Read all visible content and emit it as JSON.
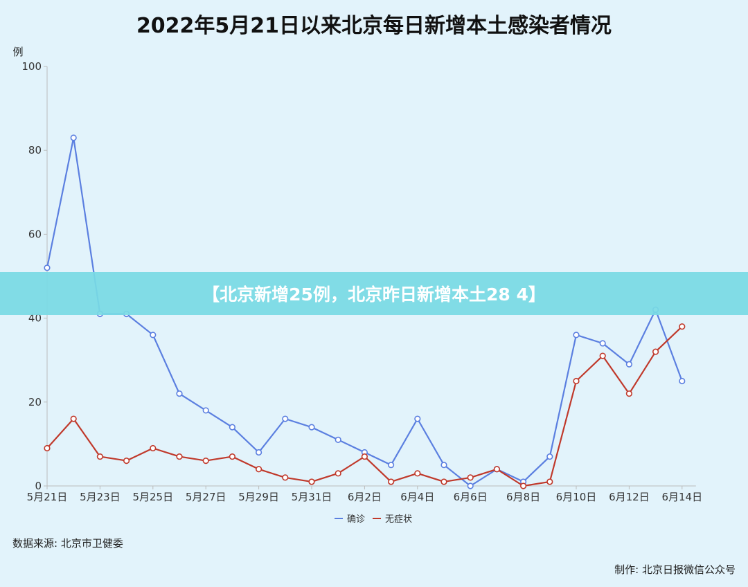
{
  "title": "2022年5月21日以来北京每日新增本土感染者情况",
  "banner": "【北京新增25例，北京昨日新增本土28 4】",
  "source": "数据来源: 北京市卫健委",
  "credit": "制作:  北京日报微信公众号",
  "colors": {
    "confirmed": "#5b7fe0",
    "asymptomatic": "#c0392b",
    "axis": "#bbbbbb"
  },
  "chart_data": {
    "type": "line",
    "title": "2022年5月21日以来北京每日新增本土感染者情况",
    "ylabel": "例",
    "ylim": [
      0,
      100
    ],
    "yticks": [
      0,
      20,
      40,
      60,
      80,
      100
    ],
    "x": [
      "5月21日",
      "5月22日",
      "5月23日",
      "5月24日",
      "5月25日",
      "5月26日",
      "5月27日",
      "5月28日",
      "5月29日",
      "5月30日",
      "5月31日",
      "6月1日",
      "6月2日",
      "6月3日",
      "6月4日",
      "6月5日",
      "6月6日",
      "6月7日",
      "6月8日",
      "6月9日",
      "6月10日",
      "6月11日",
      "6月12日",
      "6月13日",
      "6月14日"
    ],
    "xtick_labels": [
      "5月21日",
      "5月23日",
      "5月25日",
      "5月27日",
      "5月29日",
      "5月31日",
      "6月2日",
      "6月4日",
      "6月6日",
      "6月8日",
      "6月10日",
      "6月12日",
      "6月14日"
    ],
    "series": [
      {
        "name": "确诊",
        "values": [
          52,
          83,
          41,
          41,
          36,
          22,
          18,
          14,
          8,
          16,
          14,
          11,
          8,
          5,
          16,
          5,
          0,
          4,
          1,
          7,
          36,
          34,
          29,
          42,
          25
        ]
      },
      {
        "name": "无症状",
        "values": [
          9,
          16,
          7,
          6,
          9,
          7,
          6,
          7,
          4,
          2,
          1,
          3,
          7,
          1,
          3,
          1,
          2,
          4,
          0,
          1,
          25,
          31,
          22,
          32,
          38
        ]
      }
    ],
    "grid": false,
    "legend": "bottom-center"
  }
}
